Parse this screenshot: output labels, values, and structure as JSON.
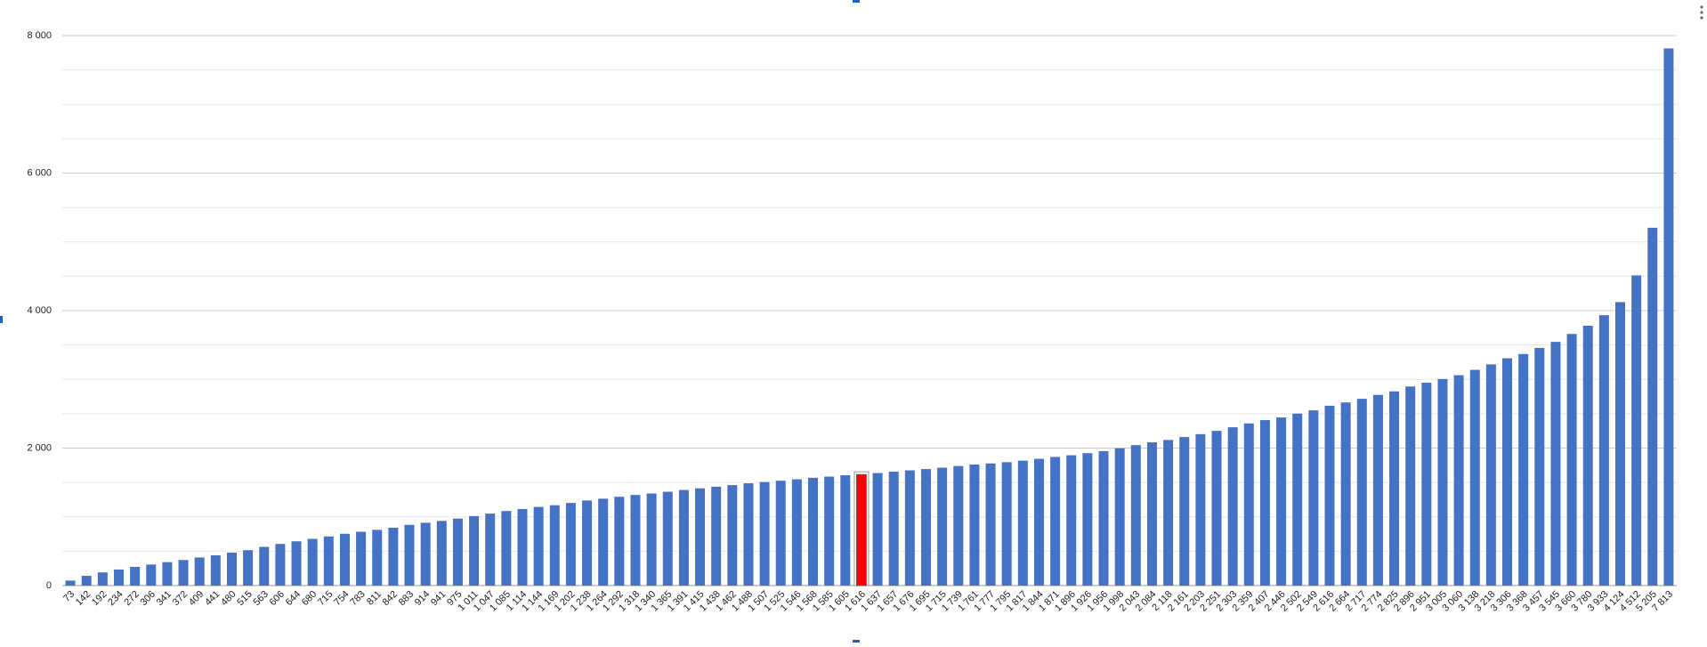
{
  "chart_data": {
    "type": "bar",
    "categories": [
      "73",
      "142",
      "192",
      "234",
      "272",
      "306",
      "341",
      "372",
      "409",
      "441",
      "480",
      "515",
      "563",
      "606",
      "644",
      "680",
      "715",
      "754",
      "783",
      "811",
      "842",
      "883",
      "914",
      "941",
      "975",
      "1 011",
      "1 047",
      "1 085",
      "1 114",
      "1 144",
      "1 169",
      "1 202",
      "1 238",
      "1 264",
      "1 292",
      "1 318",
      "1 340",
      "1 365",
      "1 391",
      "1 415",
      "1 438",
      "1 462",
      "1 488",
      "1 507",
      "1 525",
      "1 546",
      "1 568",
      "1 585",
      "1 605",
      "1 616",
      "1 637",
      "1 657",
      "1 676",
      "1 695",
      "1 715",
      "1 739",
      "1 761",
      "1 777",
      "1 795",
      "1 817",
      "1 844",
      "1 871",
      "1 896",
      "1 926",
      "1 956",
      "1 998",
      "2 043",
      "2 084",
      "2 118",
      "2 161",
      "2 203",
      "2 251",
      "2 303",
      "2 359",
      "2 407",
      "2 446",
      "2 502",
      "2 549",
      "2 616",
      "2 664",
      "2 717",
      "2 774",
      "2 825",
      "2 896",
      "2 951",
      "3 005",
      "3 060",
      "3 138",
      "3 218",
      "3 306",
      "3 368",
      "3 457",
      "3 545",
      "3 660",
      "3 780",
      "3 933",
      "4 124",
      "4 512",
      "5 205",
      "7 813"
    ],
    "values": [
      73,
      142,
      192,
      234,
      272,
      306,
      341,
      372,
      409,
      441,
      480,
      515,
      563,
      606,
      644,
      680,
      715,
      754,
      783,
      811,
      842,
      883,
      914,
      941,
      975,
      1011,
      1047,
      1085,
      1114,
      1144,
      1169,
      1202,
      1238,
      1264,
      1292,
      1318,
      1340,
      1365,
      1391,
      1415,
      1438,
      1462,
      1488,
      1507,
      1525,
      1546,
      1568,
      1585,
      1605,
      1616,
      1637,
      1657,
      1676,
      1695,
      1715,
      1739,
      1761,
      1777,
      1795,
      1817,
      1844,
      1871,
      1896,
      1926,
      1956,
      1998,
      2043,
      2084,
      2118,
      2161,
      2203,
      2251,
      2303,
      2359,
      2407,
      2446,
      2502,
      2549,
      2616,
      2664,
      2717,
      2774,
      2825,
      2896,
      2951,
      3005,
      3060,
      3138,
      3218,
      3306,
      3368,
      3457,
      3545,
      3660,
      3780,
      3933,
      4124,
      4512,
      5205,
      7813
    ],
    "color": "#4472c4",
    "highlight_category": "1 616",
    "highlight_color": "#ff0000",
    "ylim": [
      0,
      8000
    ],
    "yticks": [
      0,
      {
        "value": 2000,
        "label": "2 000"
      },
      {
        "value": 4000,
        "label": "4 000"
      },
      {
        "value": 6000,
        "label": "6 000"
      },
      {
        "value": 8000,
        "label": "8 000"
      }
    ],
    "minor_yticks": [
      500,
      1000,
      1500,
      2500,
      3000,
      3500,
      4500,
      5000,
      5500,
      6500,
      7000,
      7500
    ],
    "grid": true
  }
}
